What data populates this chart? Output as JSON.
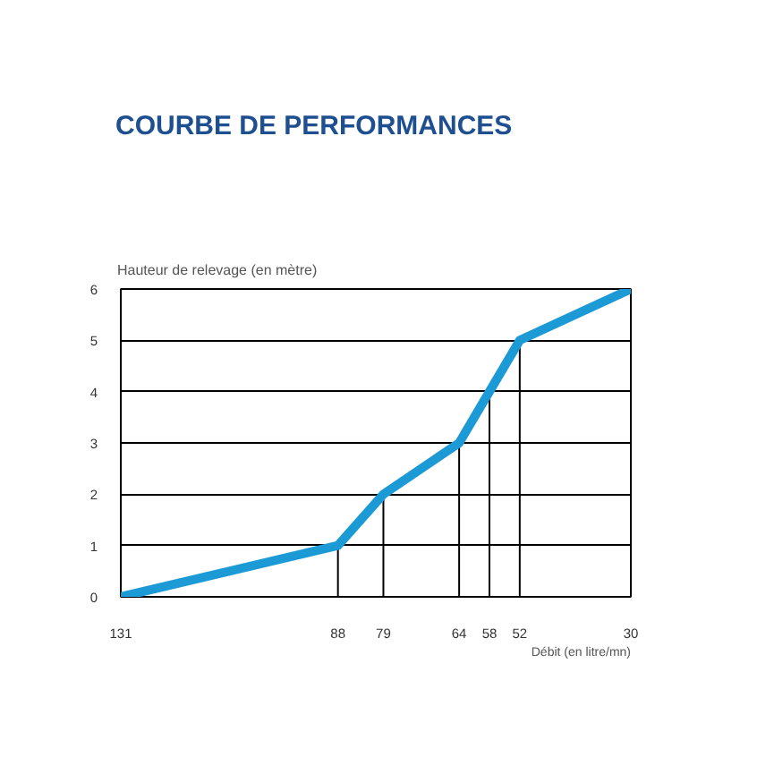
{
  "chart_data": {
    "type": "line",
    "title": "COURBE DE PERFORMANCES",
    "xlabel": "Débit (en litre/mn)",
    "ylabel": "Hauteur de relevage (en mètre)",
    "x": [
      131,
      88,
      79,
      64,
      58,
      52,
      30
    ],
    "series": [
      {
        "color": "#1c9ad6",
        "values": [
          0,
          1,
          2,
          3,
          4,
          5,
          6
        ]
      }
    ],
    "xlim": [
      131,
      30
    ],
    "ylim": [
      0,
      6
    ],
    "xticks": [
      131,
      88,
      79,
      64,
      58,
      52,
      30
    ],
    "yticks": [
      0,
      1,
      2,
      3,
      4,
      5,
      6
    ],
    "ref_lines": [
      {
        "axis": "x",
        "value": 88
      },
      {
        "axis": "x",
        "value": 79
      },
      {
        "axis": "x",
        "value": 64
      },
      {
        "axis": "x",
        "value": 58
      },
      {
        "axis": "x",
        "value": 52
      }
    ],
    "grid": "y"
  }
}
